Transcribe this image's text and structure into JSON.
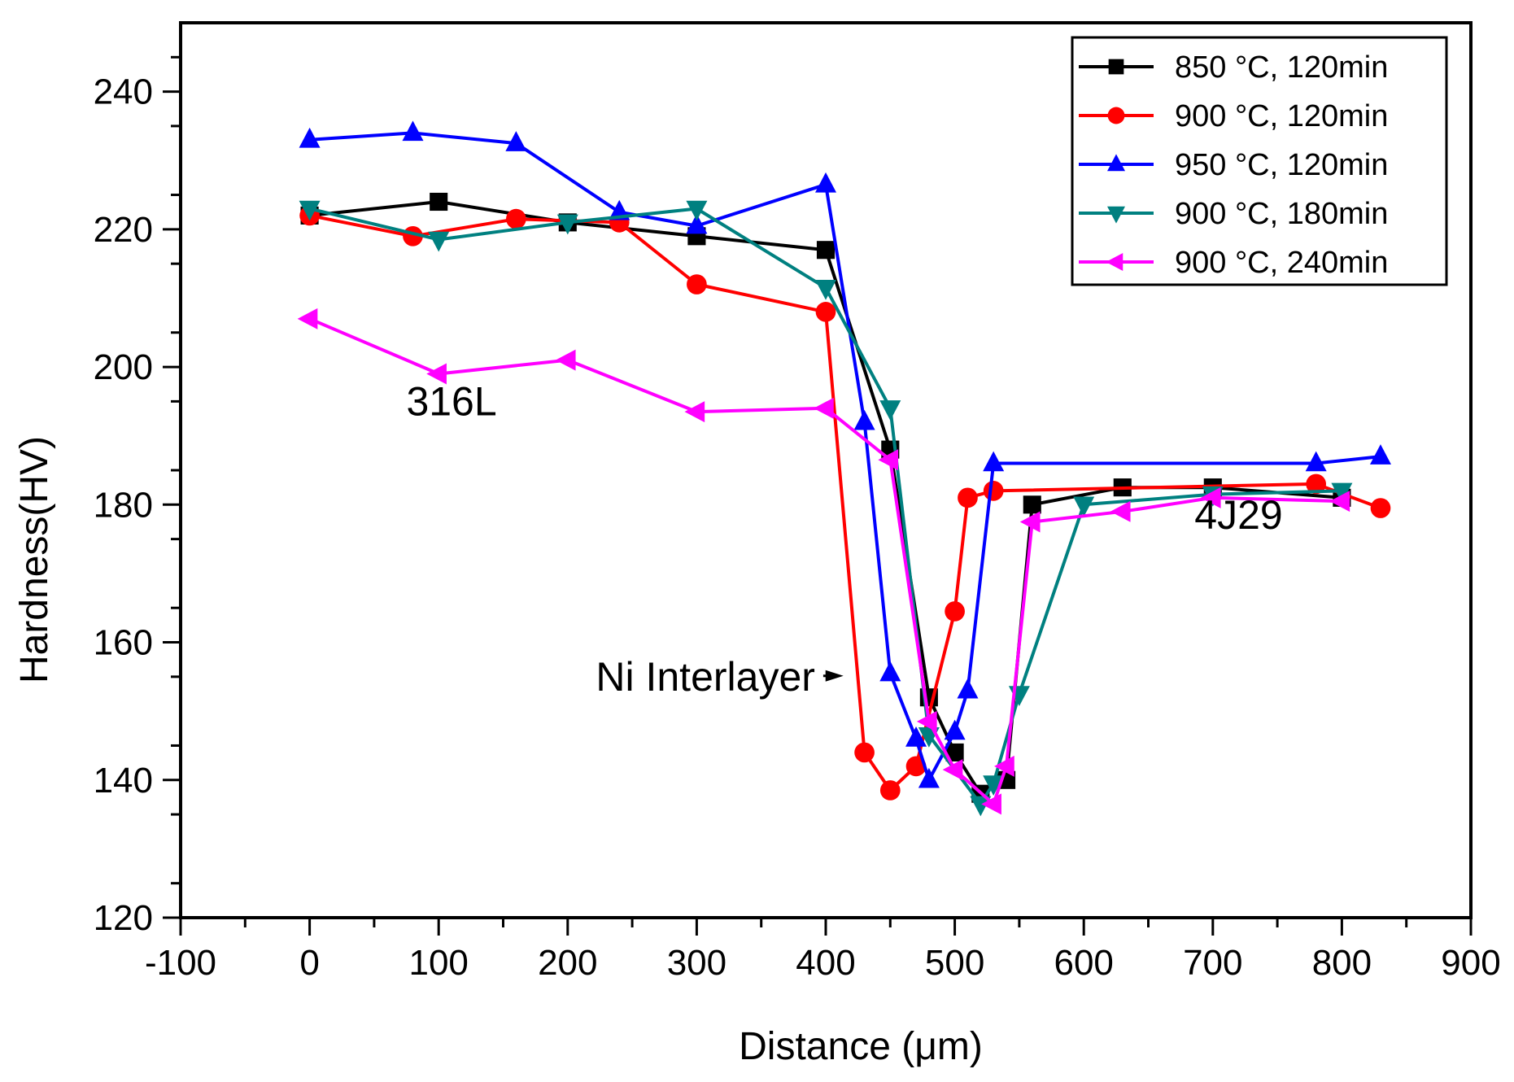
{
  "chart_data": {
    "type": "line",
    "title": "",
    "xlabel": "Distance (μm)",
    "ylabel": "Hardness(HV)",
    "xlim": [
      -100,
      900
    ],
    "ylim": [
      120,
      250
    ],
    "xticks": [
      -100,
      0,
      100,
      200,
      300,
      400,
      500,
      600,
      700,
      800,
      900
    ],
    "xtick_labels": [
      "-100",
      "0",
      "100",
      "200",
      "300",
      "400",
      "500",
      "600",
      "700",
      "800",
      "900"
    ],
    "yticks": [
      120,
      140,
      160,
      180,
      200,
      220,
      240
    ],
    "ytick_labels": [
      "120",
      "140",
      "160",
      "180",
      "200",
      "220",
      "240"
    ],
    "grid": false,
    "legend_position": "top-right",
    "series": [
      {
        "name": "850 °C, 120min",
        "color": "#000000",
        "marker": "square",
        "points": [
          [
            0,
            222
          ],
          [
            100,
            224
          ],
          [
            200,
            221
          ],
          [
            300,
            219
          ],
          [
            400,
            217
          ],
          [
            450,
            188
          ],
          [
            480,
            152
          ],
          [
            500,
            144
          ],
          [
            520,
            138
          ],
          [
            540,
            140
          ],
          [
            560,
            180
          ],
          [
            630,
            182.5
          ],
          [
            700,
            182.5
          ],
          [
            800,
            181
          ]
        ]
      },
      {
        "name": "900 °C, 120min",
        "color": "#ff0000",
        "marker": "circle",
        "points": [
          [
            0,
            222
          ],
          [
            80,
            219
          ],
          [
            160,
            221.5
          ],
          [
            240,
            221
          ],
          [
            300,
            212
          ],
          [
            400,
            208
          ],
          [
            430,
            144
          ],
          [
            450,
            138.5
          ],
          [
            470,
            142
          ],
          [
            500,
            164.5
          ],
          [
            510,
            181
          ],
          [
            530,
            182
          ],
          [
            780,
            183
          ],
          [
            830,
            179.5
          ]
        ]
      },
      {
        "name": "950 °C, 120min",
        "color": "#0000ff",
        "marker": "triangle-up",
        "points": [
          [
            0,
            233
          ],
          [
            80,
            234
          ],
          [
            160,
            232.5
          ],
          [
            240,
            222.5
          ],
          [
            300,
            220.5
          ],
          [
            400,
            226.5
          ],
          [
            430,
            192
          ],
          [
            450,
            155.5
          ],
          [
            470,
            146
          ],
          [
            480,
            140
          ],
          [
            500,
            147
          ],
          [
            510,
            153
          ],
          [
            530,
            186
          ],
          [
            780,
            186
          ],
          [
            830,
            187
          ]
        ]
      },
      {
        "name": "900 °C, 180min",
        "color": "#008080",
        "marker": "triangle-down",
        "points": [
          [
            0,
            223
          ],
          [
            100,
            218.5
          ],
          [
            200,
            221
          ],
          [
            300,
            223
          ],
          [
            400,
            211.5
          ],
          [
            450,
            194
          ],
          [
            480,
            146.5
          ],
          [
            520,
            136.5
          ],
          [
            530,
            139.5
          ],
          [
            550,
            152.5
          ],
          [
            600,
            180
          ],
          [
            700,
            181.5
          ],
          [
            800,
            182
          ]
        ]
      },
      {
        "name": "900 °C, 240min",
        "color": "#ff00ff",
        "marker": "triangle-left",
        "points": [
          [
            0,
            207
          ],
          [
            100,
            199
          ],
          [
            200,
            201
          ],
          [
            300,
            193.5
          ],
          [
            400,
            194
          ],
          [
            450,
            186.5
          ],
          [
            480,
            148.5
          ],
          [
            500,
            141.5
          ],
          [
            530,
            136.5
          ],
          [
            540,
            142
          ],
          [
            560,
            177.5
          ],
          [
            630,
            179
          ],
          [
            700,
            181
          ],
          [
            800,
            180.5
          ]
        ]
      }
    ],
    "annotations": [
      {
        "text": "316L",
        "x": 110,
        "y": 193
      },
      {
        "text": "4J29",
        "x": 720,
        "y": 176.5
      },
      {
        "text": "Ni Interlayer",
        "x": 335,
        "y": 153,
        "arrow_to_x": 420,
        "arrow_to_y": 153
      }
    ]
  }
}
